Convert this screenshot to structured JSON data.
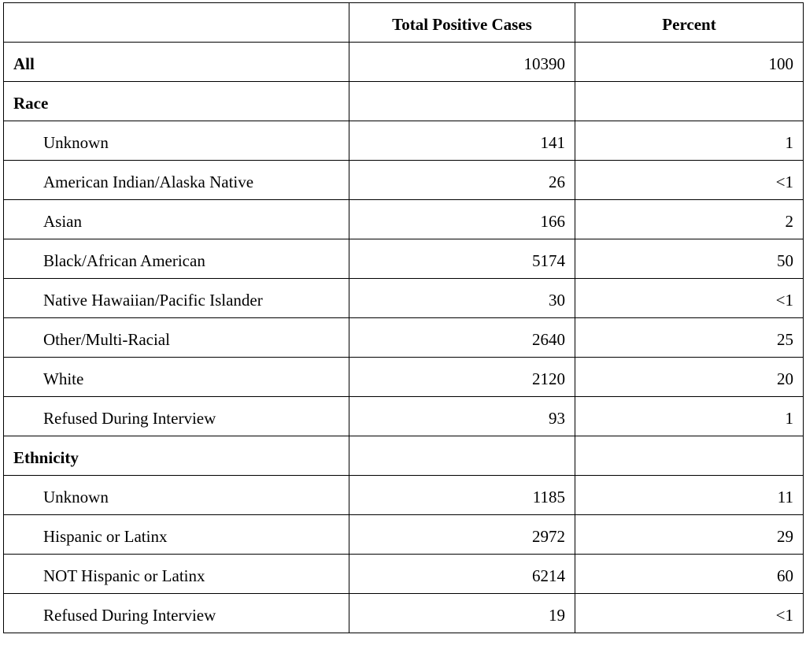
{
  "table": {
    "columns": [
      "Total Positive Cases",
      "Percent"
    ],
    "all": {
      "label": "All",
      "cases": 10390,
      "percent": 100
    },
    "groups": [
      {
        "name": "Race",
        "rows": [
          {
            "label": "Unknown",
            "cases": 141,
            "percent": 1
          },
          {
            "label": "American Indian/Alaska Native",
            "cases": 26,
            "percent": "<1"
          },
          {
            "label": "Asian",
            "cases": 166,
            "percent": 2
          },
          {
            "label": "Black/African American",
            "cases": 5174,
            "percent": 50
          },
          {
            "label": "Native Hawaiian/Pacific Islander",
            "cases": 30,
            "percent": "<1"
          },
          {
            "label": "Other/Multi-Racial",
            "cases": 2640,
            "percent": 25
          },
          {
            "label": "White",
            "cases": 2120,
            "percent": 20
          },
          {
            "label": "Refused During Interview",
            "cases": 93,
            "percent": 1
          }
        ]
      },
      {
        "name": "Ethnicity",
        "rows": [
          {
            "label": "Unknown",
            "cases": 1185,
            "percent": 11
          },
          {
            "label": "Hispanic or Latinx",
            "cases": 2972,
            "percent": 29
          },
          {
            "label": "NOT Hispanic or Latinx",
            "cases": 6214,
            "percent": 60
          },
          {
            "label": "Refused During Interview",
            "cases": 19,
            "percent": "<1"
          }
        ]
      }
    ]
  }
}
